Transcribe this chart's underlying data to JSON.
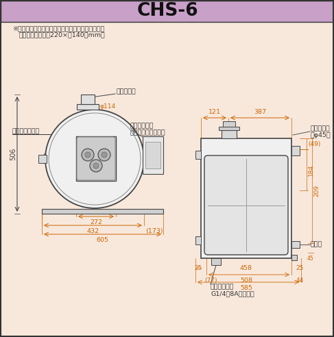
{
  "title": "CHS-6",
  "title_bg": "#c8a0c8",
  "body_bg": "#f8e8dc",
  "border_color": "#444444",
  "line_color": "#444444",
  "dim_color": "#cc6600",
  "text_color": "#333333",
  "note_line1": "※バーナー取付け左右可能。（左・右キャップ付）",
  "note_line2": "焪口開口寸法／幅220×高140（mm）",
  "label_tsuufuu": "通風調節器",
  "label_kanetsu": "過熱防止装置",
  "label_kanetsu2": "（背面カバー内部）",
  "label_karadaki": "空だき防止装置",
  "label_furo": "ふろ循環口",
  "label_furo2": "（φ45）",
  "label_haisui": "排水栓",
  "label_sonyuu": "送油管接続口",
  "label_sonyuu2": "G1/4（8Aオネジ）",
  "dim_506": "506",
  "dim_272": "272",
  "dim_432": "432",
  "dim_605": "605",
  "dim_173": "(173)",
  "dim_phi114": "φ114",
  "dim_121": "121",
  "dim_387": "387",
  "dim_458": "458",
  "dim_508": "508",
  "dim_585": "585",
  "dim_25L": "25",
  "dim_25R": "25",
  "dim_44": "44",
  "dim_77": "(77)",
  "dim_49": "(49)",
  "dim_184": "184",
  "dim_209": "209",
  "dim_45": "45"
}
